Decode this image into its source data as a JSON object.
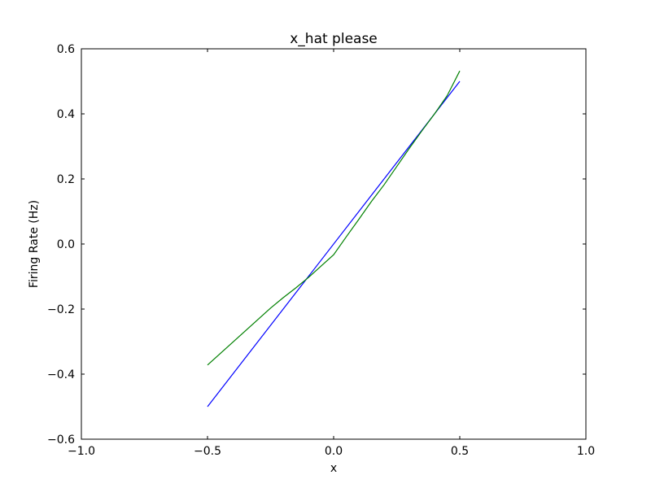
{
  "chart_data": {
    "type": "line",
    "title": "x_hat please",
    "xlabel": "x",
    "ylabel": "Firing Rate (Hz)",
    "xlim": [
      -1.0,
      1.0
    ],
    "ylim": [
      -0.6,
      0.6
    ],
    "xticks": [
      -1.0,
      -0.5,
      0.0,
      0.5,
      1.0
    ],
    "xtick_labels": [
      "−1.0",
      "−0.5",
      "0.0",
      "0.5",
      "1.0"
    ],
    "yticks": [
      -0.6,
      -0.4,
      -0.2,
      0.0,
      0.2,
      0.4,
      0.6
    ],
    "ytick_labels": [
      "−0.6",
      "−0.4",
      "−0.2",
      "0.0",
      "0.2",
      "0.4",
      "0.6"
    ],
    "grid": false,
    "series": [
      {
        "color": "#0000ff",
        "x": [
          -0.5,
          0.5
        ],
        "y": [
          -0.5,
          0.5
        ]
      },
      {
        "color": "#008000",
        "x": [
          -0.5,
          -0.4,
          -0.3,
          -0.25,
          -0.2,
          -0.15,
          -0.1,
          -0.05,
          0.0,
          0.05,
          0.1,
          0.15,
          0.2,
          0.25,
          0.3,
          0.35,
          0.4,
          0.45,
          0.5
        ],
        "y": [
          -0.372,
          -0.302,
          -0.232,
          -0.197,
          -0.165,
          -0.135,
          -0.103,
          -0.068,
          -0.033,
          0.022,
          0.076,
          0.131,
          0.182,
          0.238,
          0.294,
          0.348,
          0.4,
          0.456,
          0.532
        ]
      }
    ]
  }
}
